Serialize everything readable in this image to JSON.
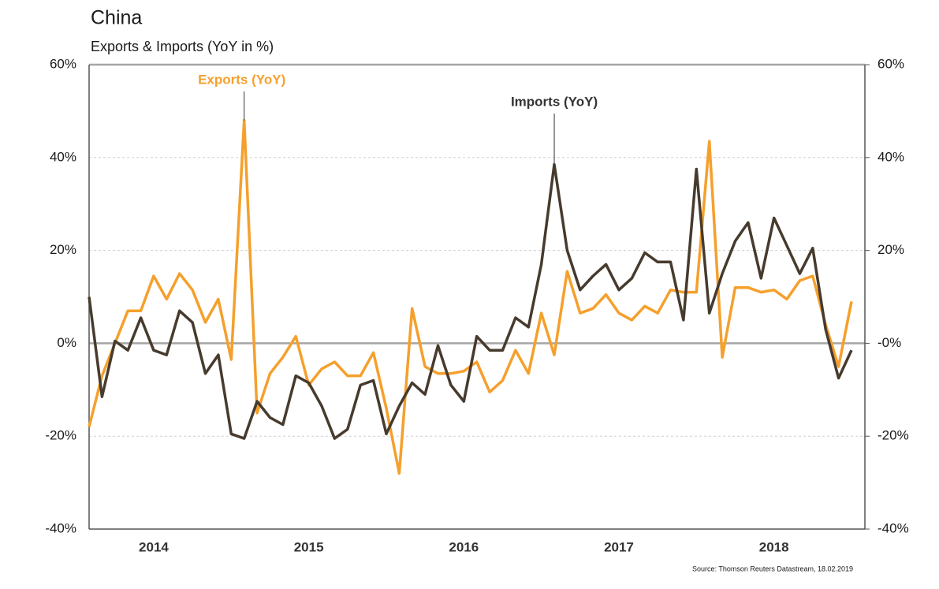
{
  "chart_data": {
    "type": "line",
    "title": "China",
    "subtitle": "Exports & Imports (YoY in %)",
    "source": "Source: Thomson Reuters Datastream, 18.02.2019",
    "categories": [
      null,
      null,
      null,
      null,
      null,
      "2014",
      null,
      null,
      null,
      null,
      null,
      null,
      null,
      null,
      null,
      null,
      null,
      "2015",
      null,
      null,
      null,
      null,
      null,
      null,
      null,
      null,
      null,
      null,
      null,
      "2016",
      null,
      null,
      null,
      null,
      null,
      null,
      null,
      null,
      null,
      null,
      null,
      "2017",
      null,
      null,
      null,
      null,
      null,
      null,
      null,
      null,
      null,
      null,
      null,
      "2018",
      null,
      null,
      null,
      null,
      null,
      null
    ],
    "series": [
      {
        "name": "Exports (YoY)",
        "color": "#f5a02c",
        "values": [
          -18,
          -7,
          0,
          7,
          7,
          14.5,
          9.5,
          15,
          11.5,
          4.5,
          9.5,
          -3.5,
          48,
          -15,
          -6.5,
          -3,
          1.5,
          -9,
          -5.5,
          -4,
          -7,
          -7,
          -2,
          -14,
          -28,
          7.5,
          -5,
          -6.5,
          -6.5,
          -6,
          -4,
          -10.5,
          -8,
          -1.5,
          -6.5,
          6.5,
          -2.5,
          15.5,
          6.5,
          7.5,
          10.5,
          6.5,
          5,
          8,
          6.5,
          11.5,
          11,
          11,
          43.5,
          -3,
          12,
          12,
          11,
          11.5,
          9.5,
          13.5,
          14.5,
          4,
          -5,
          9
        ]
      },
      {
        "name": "Imports (YoY)",
        "color": "#473b2e",
        "values": [
          10,
          -11.5,
          0.5,
          -1.5,
          5.5,
          -1.5,
          -2.5,
          7,
          4.5,
          -6.5,
          -2.5,
          -19.5,
          -20.5,
          -12.5,
          -16,
          -17.5,
          -7,
          -8.5,
          -13.5,
          -20.5,
          -18.5,
          -9,
          -8,
          -19.5,
          -13.5,
          -8.5,
          -11,
          -0.5,
          -9,
          -12.5,
          1.5,
          -1.5,
          -1.5,
          5.5,
          3.5,
          17,
          38.5,
          20,
          11.5,
          14.5,
          17,
          11.5,
          14,
          19.5,
          17.5,
          17.5,
          5,
          37.5,
          6.5,
          15,
          22,
          26,
          14,
          27,
          21,
          15,
          20.5,
          3,
          -7.5,
          -1.5
        ]
      }
    ],
    "ylim": [
      -40,
      60
    ],
    "yticks": [
      {
        "value": -40,
        "label": "-40%"
      },
      {
        "value": -20,
        "label": "-20%"
      },
      {
        "value": 0,
        "label": "0%"
      },
      {
        "value": 20,
        "label": "20%"
      },
      {
        "value": 40,
        "label": "40%"
      },
      {
        "value": 60,
        "label": "60%"
      }
    ],
    "y2lim": [
      -40,
      60
    ],
    "y2ticks": [
      {
        "value": -40,
        "label": "-40%"
      },
      {
        "value": -20,
        "label": "-20%"
      },
      {
        "value": 0,
        "label": "-0%"
      },
      {
        "value": 20,
        "label": "20%"
      },
      {
        "value": 40,
        "label": "40%"
      },
      {
        "value": 60,
        "label": "60%"
      }
    ],
    "grid": true
  }
}
